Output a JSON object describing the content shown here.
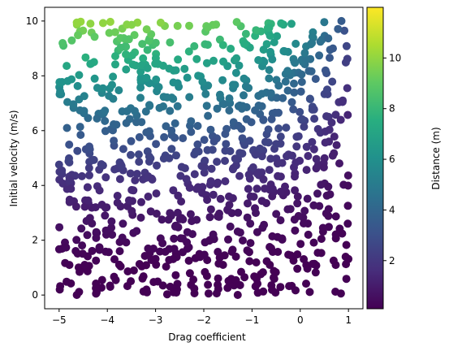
{
  "chart_data": {
    "type": "scatter",
    "xlabel": "Drag coefficient",
    "ylabel": "Initial velocity (m/s)",
    "colorbar_label": "Distance (m)",
    "colormap": "viridis",
    "marker_color_note": "colored by distance",
    "xlim": [
      -5.3,
      1.3
    ],
    "ylim": [
      -0.5,
      10.5
    ],
    "xticks": [
      -5,
      -4,
      -3,
      -2,
      -1,
      0,
      1
    ],
    "yticks": [
      0,
      2,
      4,
      6,
      8,
      10
    ],
    "color_range": [
      0.1,
      12.0
    ],
    "colorbar_ticks": [
      2,
      4,
      6,
      8,
      10
    ],
    "grid": false,
    "legend": "none",
    "point_count": 900,
    "x_range": [
      -5,
      1
    ],
    "y_range": [
      0,
      10
    ],
    "random_seed": 7
  }
}
